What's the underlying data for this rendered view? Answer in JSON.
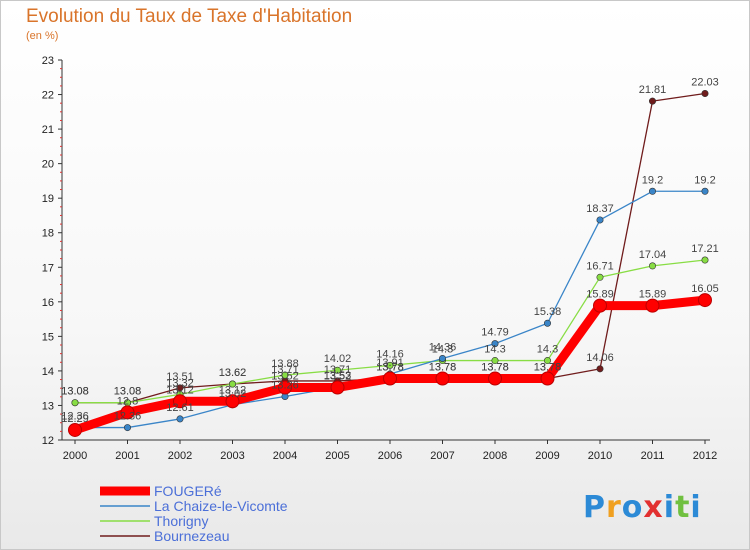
{
  "chart_data": {
    "type": "line",
    "title": "Evolution du Taux de Taxe d'Habitation",
    "subtitle": "(en %)",
    "x": [
      "2000",
      "2001",
      "2002",
      "2003",
      "2004",
      "2005",
      "2006",
      "2007",
      "2008",
      "2009",
      "2010",
      "2011",
      "2012"
    ],
    "ylim": [
      12,
      23
    ],
    "yticks": [
      12,
      13,
      14,
      15,
      16,
      17,
      18,
      19,
      20,
      21,
      22,
      23
    ],
    "grid": false,
    "legend_position": "bottom-left",
    "series": [
      {
        "name": "FOUGERé",
        "color": "#ff0000",
        "values": [
          12.29,
          12.8,
          13.12,
          13.12,
          13.52,
          13.52,
          13.78,
          13.78,
          13.78,
          13.78,
          15.89,
          15.89,
          16.05
        ],
        "labels": [
          "12.29",
          "12.8",
          "13.12",
          "13.12",
          "13.52",
          "13.52",
          "13.78",
          "13.78",
          "13.78",
          "13.78",
          "15.89",
          "15.89",
          "16.05"
        ]
      },
      {
        "name": "La Chaize-le-Vicomte",
        "color": "#3a85c8",
        "values": [
          12.36,
          12.36,
          12.61,
          13.02,
          13.26,
          13.53,
          13.91,
          14.36,
          14.79,
          15.38,
          18.37,
          19.2,
          19.2
        ],
        "labels": [
          "12.36",
          "12.36",
          "12.61",
          "13.02",
          "13.26",
          "13.53",
          "13.91",
          "14.36",
          "14.79",
          "15.38",
          "18.37",
          "19.2",
          "19.2"
        ]
      },
      {
        "name": "Thorigny",
        "color": "#88dd44",
        "values": [
          13.08,
          13.08,
          13.32,
          13.62,
          13.88,
          14.02,
          14.16,
          14.3,
          14.3,
          14.3,
          16.71,
          17.04,
          17.21
        ],
        "labels": [
          "13.08",
          "13.08",
          "13.32",
          "13.62",
          "13.88",
          "14.02",
          "14.16",
          "14.3",
          "14.3",
          "14.3",
          "16.71",
          "17.04",
          "17.21"
        ]
      },
      {
        "name": "Bournezeau",
        "color": "#701c1c",
        "values": [
          13.08,
          13.08,
          13.51,
          13.62,
          13.71,
          13.71,
          13.78,
          13.78,
          13.78,
          13.78,
          14.06,
          21.81,
          22.03
        ],
        "labels": [
          "13.08",
          "13.08",
          "13.51",
          "13.62",
          "13.71",
          "13.71",
          "13.78",
          "13.78",
          "13.78",
          "13.78",
          "14.06",
          "21.81",
          "22.03"
        ]
      }
    ]
  },
  "logo": {
    "letters": [
      "P",
      "r",
      "o",
      "x",
      "i",
      "t",
      "i"
    ],
    "colors": [
      "#2c8ad6",
      "#f0a020",
      "#2c8ad6",
      "#e23030",
      "#2c8ad6",
      "#70c040",
      "#2c8ad6"
    ]
  }
}
